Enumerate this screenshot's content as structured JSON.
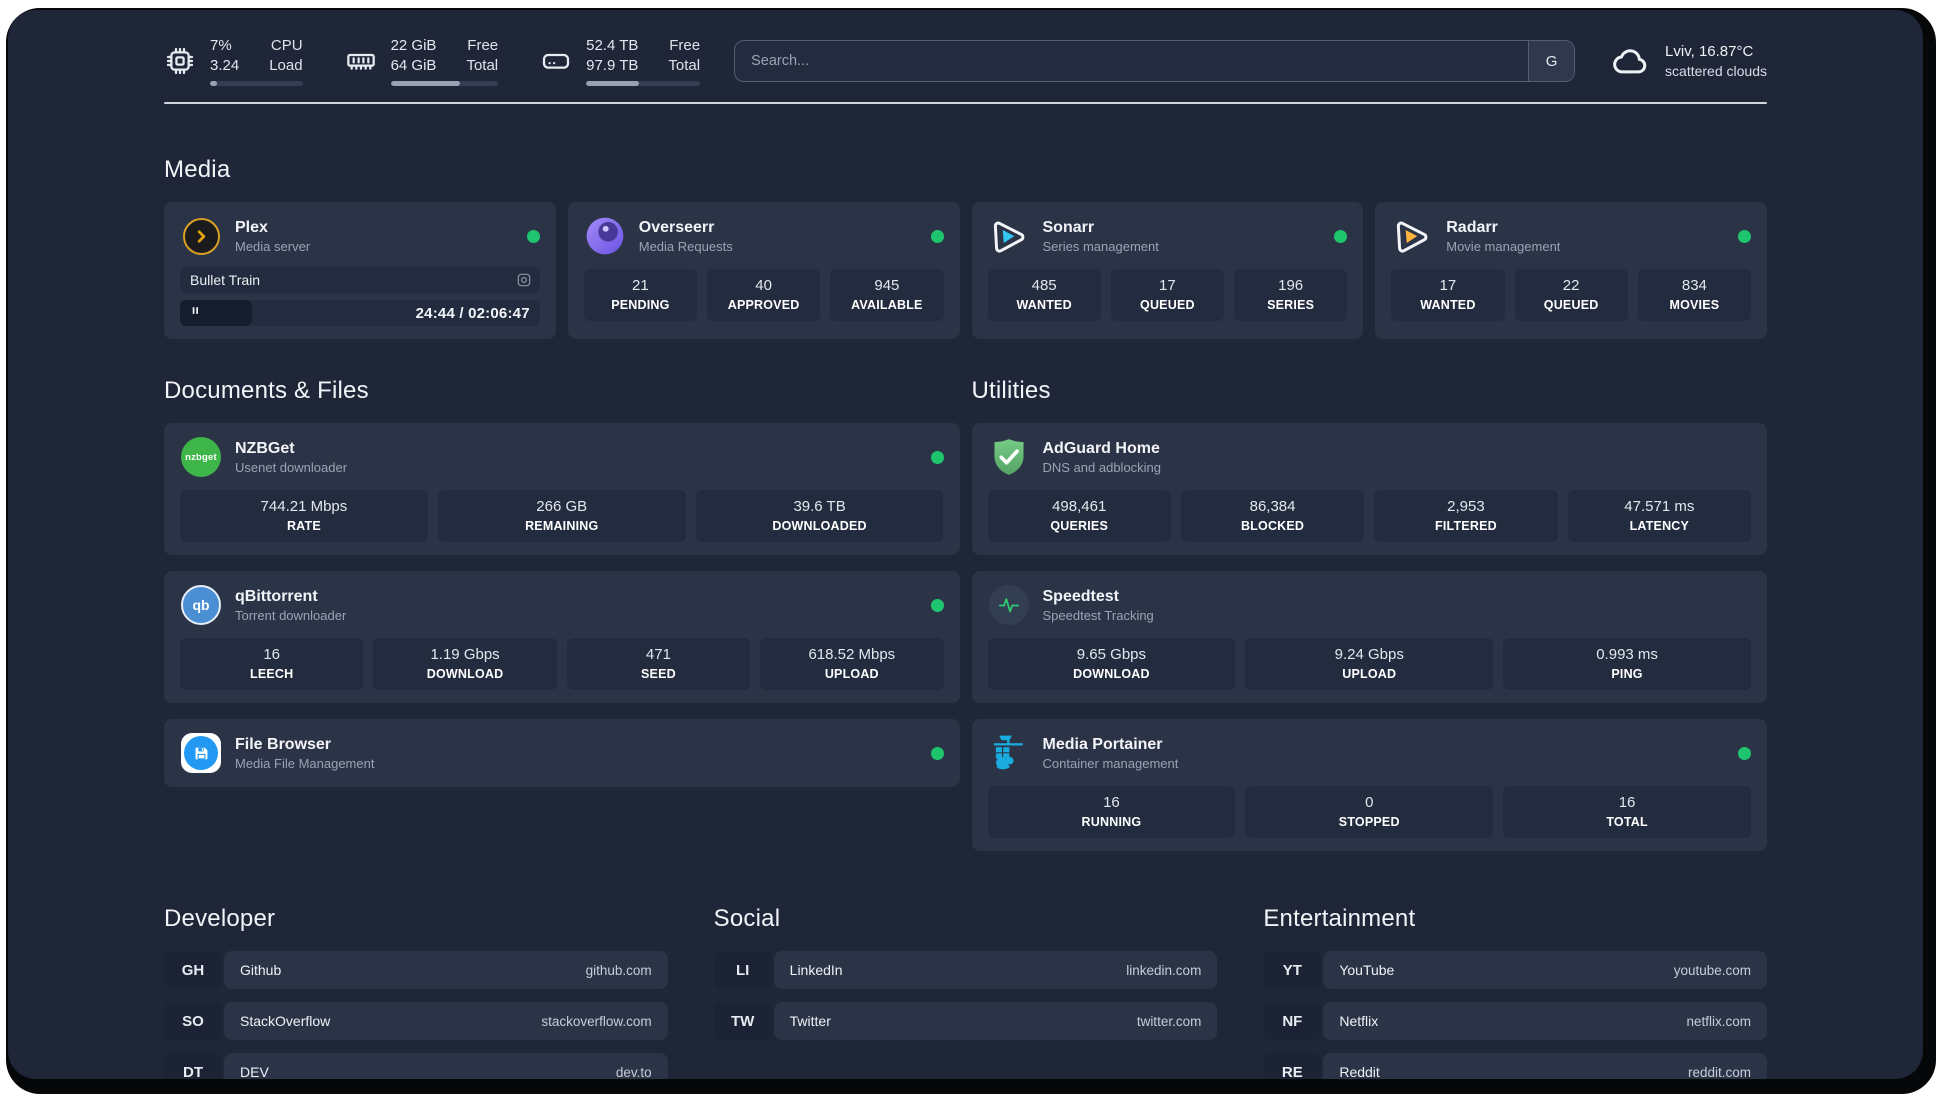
{
  "topbar": {
    "stats": [
      {
        "icon": "cpu-icon",
        "lines": [
          "7%",
          "3.24"
        ],
        "labels": [
          "CPU",
          "Load"
        ],
        "progress_pct": 8
      },
      {
        "icon": "ram-icon",
        "lines": [
          "22 GiB",
          "64 GiB"
        ],
        "labels": [
          "Free",
          "Total"
        ],
        "progress_pct": 65
      },
      {
        "icon": "disk-icon",
        "lines": [
          "52.4 TB",
          "97.9 TB"
        ],
        "labels": [
          "Free",
          "Total"
        ],
        "progress_pct": 46
      }
    ],
    "search": {
      "placeholder": "Search...",
      "provider_label": "G"
    },
    "weather": {
      "icon": "cloud-icon",
      "location": "Lviv, 16.87°C",
      "condition": "scattered clouds"
    }
  },
  "sections": {
    "media": {
      "title": "Media",
      "cards": [
        {
          "name": "Plex",
          "desc": "Media server",
          "icon": "plex-icon",
          "online": true,
          "player": {
            "title": "Bullet Train",
            "time": "24:44 / 02:06:47",
            "progress_pct": 20
          }
        },
        {
          "name": "Overseerr",
          "desc": "Media Requests",
          "icon": "overseerr-icon",
          "online": true,
          "stats": [
            {
              "value": "21",
              "label": "PENDING"
            },
            {
              "value": "40",
              "label": "APPROVED"
            },
            {
              "value": "945",
              "label": "AVAILABLE"
            }
          ]
        },
        {
          "name": "Sonarr",
          "desc": "Series management",
          "icon": "sonarr-icon",
          "online": true,
          "stats": [
            {
              "value": "485",
              "label": "WANTED"
            },
            {
              "value": "17",
              "label": "QUEUED"
            },
            {
              "value": "196",
              "label": "SERIES"
            }
          ]
        },
        {
          "name": "Radarr",
          "desc": "Movie management",
          "icon": "radarr-icon",
          "online": true,
          "stats": [
            {
              "value": "17",
              "label": "WANTED"
            },
            {
              "value": "22",
              "label": "QUEUED"
            },
            {
              "value": "834",
              "label": "MOVIES"
            }
          ]
        }
      ]
    },
    "documents": {
      "title": "Documents & Files",
      "cards": [
        {
          "name": "NZBGet",
          "desc": "Usenet downloader",
          "icon": "nzbget-icon",
          "online": true,
          "stats": [
            {
              "value": "744.21 Mbps",
              "label": "RATE"
            },
            {
              "value": "266 GB",
              "label": "REMAINING"
            },
            {
              "value": "39.6 TB",
              "label": "DOWNLOADED"
            }
          ]
        },
        {
          "name": "qBittorrent",
          "desc": "Torrent downloader",
          "icon": "qbittorrent-icon",
          "online": true,
          "stats": [
            {
              "value": "16",
              "label": "LEECH"
            },
            {
              "value": "1.19 Gbps",
              "label": "DOWNLOAD"
            },
            {
              "value": "471",
              "label": "SEED"
            },
            {
              "value": "618.52 Mbps",
              "label": "UPLOAD"
            }
          ]
        },
        {
          "name": "File Browser",
          "desc": "Media File Management",
          "icon": "filebrowser-icon",
          "online": true
        }
      ]
    },
    "utilities": {
      "title": "Utilities",
      "cards": [
        {
          "name": "AdGuard Home",
          "desc": "DNS and adblocking",
          "icon": "adguard-icon",
          "online": false,
          "stats": [
            {
              "value": "498,461",
              "label": "QUERIES"
            },
            {
              "value": "86,384",
              "label": "BLOCKED"
            },
            {
              "value": "2,953",
              "label": "FILTERED"
            },
            {
              "value": "47.571 ms",
              "label": "LATENCY"
            }
          ]
        },
        {
          "name": "Speedtest",
          "desc": "Speedtest Tracking",
          "icon": "speedtest-icon",
          "online": false,
          "stats": [
            {
              "value": "9.65 Gbps",
              "label": "DOWNLOAD"
            },
            {
              "value": "9.24 Gbps",
              "label": "UPLOAD"
            },
            {
              "value": "0.993 ms",
              "label": "PING"
            }
          ]
        },
        {
          "name": "Media Portainer",
          "desc": "Container management",
          "icon": "portainer-icon",
          "online": true,
          "stats": [
            {
              "value": "16",
              "label": "RUNNING"
            },
            {
              "value": "0",
              "label": "STOPPED"
            },
            {
              "value": "16",
              "label": "TOTAL"
            }
          ]
        }
      ]
    }
  },
  "bookmarks": {
    "developer": {
      "title": "Developer",
      "items": [
        {
          "abbr": "GH",
          "name": "Github",
          "url": "github.com"
        },
        {
          "abbr": "SO",
          "name": "StackOverflow",
          "url": "stackoverflow.com"
        },
        {
          "abbr": "DT",
          "name": "DEV",
          "url": "dev.to"
        }
      ]
    },
    "social": {
      "title": "Social",
      "items": [
        {
          "abbr": "LI",
          "name": "LinkedIn",
          "url": "linkedin.com"
        },
        {
          "abbr": "TW",
          "name": "Twitter",
          "url": "twitter.com"
        }
      ]
    },
    "entertainment": {
      "title": "Entertainment",
      "items": [
        {
          "abbr": "YT",
          "name": "YouTube",
          "url": "youtube.com"
        },
        {
          "abbr": "NF",
          "name": "Netflix",
          "url": "netflix.com"
        },
        {
          "abbr": "RE",
          "name": "Reddit",
          "url": "reddit.com"
        }
      ]
    }
  },
  "colors": {
    "background": "#1e2637",
    "card": "#2b3447",
    "tile": "#232c3e",
    "status_green": "#1fc56e",
    "plex_gold": "#e5a00d",
    "sonarr_blue": "#35c5f4",
    "radarr_gold": "#ffb53c",
    "nzbget_green": "#3db549",
    "qbittorrent_blue": "#4a8fd4",
    "filebrowser_blue": "#2499f3",
    "adguard_green": "#67b279",
    "speedtest_green": "#2ecc71",
    "portainer_blue": "#1aabe0"
  }
}
